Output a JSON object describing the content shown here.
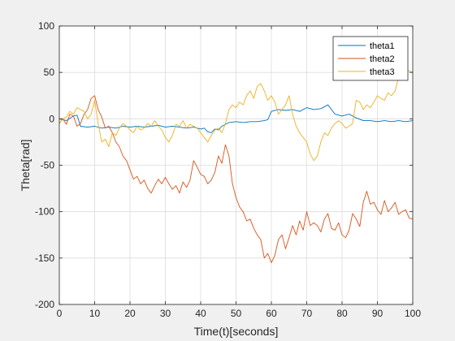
{
  "chart_data": {
    "type": "line",
    "title": "",
    "xlabel": "Time(t)[seconds]",
    "ylabel": "Theta[rad]",
    "xlim": [
      0,
      100
    ],
    "ylim": [
      -200,
      100
    ],
    "xticks": [
      0,
      10,
      20,
      30,
      40,
      50,
      60,
      70,
      80,
      90,
      100
    ],
    "yticks": [
      -200,
      -150,
      -100,
      -50,
      0,
      50,
      100
    ],
    "grid": true,
    "legend_position": "top-right",
    "series": [
      {
        "name": "theta1",
        "color": "#0072BD",
        "x": [
          0,
          2,
          4,
          5,
          6,
          8,
          10,
          12,
          14,
          16,
          18,
          20,
          22,
          24,
          26,
          28,
          30,
          32,
          34,
          36,
          38,
          40,
          41,
          42,
          43,
          44,
          45,
          46,
          48,
          50,
          52,
          54,
          56,
          58,
          59,
          60,
          62,
          64,
          66,
          68,
          70,
          72,
          74,
          76,
          78,
          80,
          82,
          84,
          86,
          88,
          90,
          92,
          94,
          96,
          98,
          100
        ],
        "y": [
          0,
          -2,
          3,
          4,
          -8,
          -9,
          -8,
          -10,
          -9,
          -10,
          -8,
          -9,
          -8,
          -9,
          -8,
          -7,
          -9,
          -8,
          -9,
          -10,
          -9,
          -11,
          -10,
          -14,
          -15,
          -11,
          -12,
          -8,
          -4,
          -3,
          -4,
          -3,
          -3,
          -2,
          -1,
          8,
          10,
          9,
          10,
          8,
          12,
          10,
          11,
          15,
          5,
          3,
          5,
          1,
          -2,
          -2,
          -3,
          -2,
          -3,
          -2,
          -3,
          -2
        ]
      },
      {
        "name": "theta2",
        "color": "#D95319",
        "x": [
          0,
          1,
          2,
          3,
          4,
          5,
          6,
          7,
          8,
          9,
          10,
          11,
          12,
          13,
          14,
          15,
          16,
          17,
          18,
          19,
          20,
          21,
          22,
          23,
          24,
          25,
          26,
          27,
          28,
          29,
          30,
          31,
          32,
          33,
          34,
          35,
          36,
          37,
          38,
          39,
          40,
          41,
          42,
          43,
          44,
          45,
          46,
          47,
          48,
          49,
          50,
          51,
          52,
          53,
          54,
          55,
          56,
          57,
          58,
          59,
          60,
          61,
          62,
          63,
          64,
          65,
          66,
          67,
          68,
          69,
          70,
          71,
          72,
          73,
          74,
          75,
          76,
          77,
          78,
          79,
          80,
          81,
          82,
          83,
          84,
          85,
          86,
          87,
          88,
          89,
          90,
          91,
          92,
          93,
          94,
          95,
          96,
          97,
          98,
          99,
          100
        ],
        "y": [
          -5,
          0,
          -6,
          5,
          3,
          -8,
          -5,
          5,
          10,
          22,
          25,
          10,
          2,
          -10,
          -8,
          -15,
          -25,
          -30,
          -40,
          -45,
          -55,
          -65,
          -62,
          -70,
          -66,
          -75,
          -80,
          -72,
          -65,
          -70,
          -63,
          -70,
          -76,
          -72,
          -80,
          -68,
          -74,
          -66,
          -45,
          -52,
          -60,
          -62,
          -70,
          -66,
          -58,
          -40,
          -48,
          -28,
          -40,
          -70,
          -85,
          -95,
          -100,
          -110,
          -108,
          -118,
          -125,
          -130,
          -150,
          -145,
          -155,
          -147,
          -130,
          -125,
          -140,
          -128,
          -115,
          -125,
          -110,
          -120,
          -100,
          -115,
          -112,
          -115,
          -122,
          -108,
          -102,
          -118,
          -120,
          -112,
          -125,
          -128,
          -120,
          -102,
          -108,
          -116,
          -90,
          -78,
          -92,
          -90,
          -98,
          -103,
          -88,
          -100,
          -96,
          -90,
          -103,
          -100,
          -98,
          -107,
          -108
        ]
      },
      {
        "name": "theta3",
        "color": "#EDB120",
        "x": [
          0,
          1,
          2,
          3,
          4,
          5,
          6,
          7,
          8,
          9,
          10,
          11,
          12,
          13,
          14,
          15,
          16,
          17,
          18,
          19,
          20,
          21,
          22,
          23,
          24,
          25,
          26,
          27,
          28,
          29,
          30,
          31,
          32,
          33,
          34,
          35,
          36,
          37,
          38,
          39,
          40,
          41,
          42,
          43,
          44,
          45,
          46,
          47,
          48,
          49,
          50,
          51,
          52,
          53,
          54,
          55,
          56,
          57,
          58,
          59,
          60,
          61,
          62,
          63,
          64,
          65,
          66,
          67,
          68,
          69,
          70,
          71,
          72,
          73,
          74,
          75,
          76,
          77,
          78,
          79,
          80,
          81,
          82,
          83,
          84,
          85,
          86,
          87,
          88,
          89,
          90,
          91,
          92,
          93,
          94,
          95,
          96,
          97,
          98,
          99,
          100
        ],
        "y": [
          -5,
          0,
          2,
          8,
          5,
          12,
          10,
          8,
          0,
          5,
          20,
          -5,
          -25,
          -22,
          -30,
          -15,
          -18,
          -10,
          -5,
          -8,
          -12,
          -15,
          -8,
          -12,
          -10,
          -5,
          -8,
          -2,
          -8,
          -12,
          -20,
          -25,
          -18,
          -6,
          -8,
          -2,
          -10,
          -6,
          -8,
          -10,
          -15,
          -20,
          -25,
          -18,
          -12,
          -10,
          -15,
          -5,
          10,
          15,
          12,
          18,
          15,
          25,
          30,
          22,
          35,
          38,
          30,
          20,
          25,
          18,
          5,
          10,
          15,
          25,
          5,
          -8,
          -15,
          -20,
          -25,
          -38,
          -45,
          -40,
          -25,
          -15,
          -18,
          -10,
          -5,
          -2,
          -5,
          -10,
          -8,
          -5,
          20,
          18,
          10,
          15,
          12,
          18,
          25,
          22,
          20,
          28,
          25,
          30,
          45,
          55,
          50,
          52,
          50
        ]
      }
    ]
  }
}
